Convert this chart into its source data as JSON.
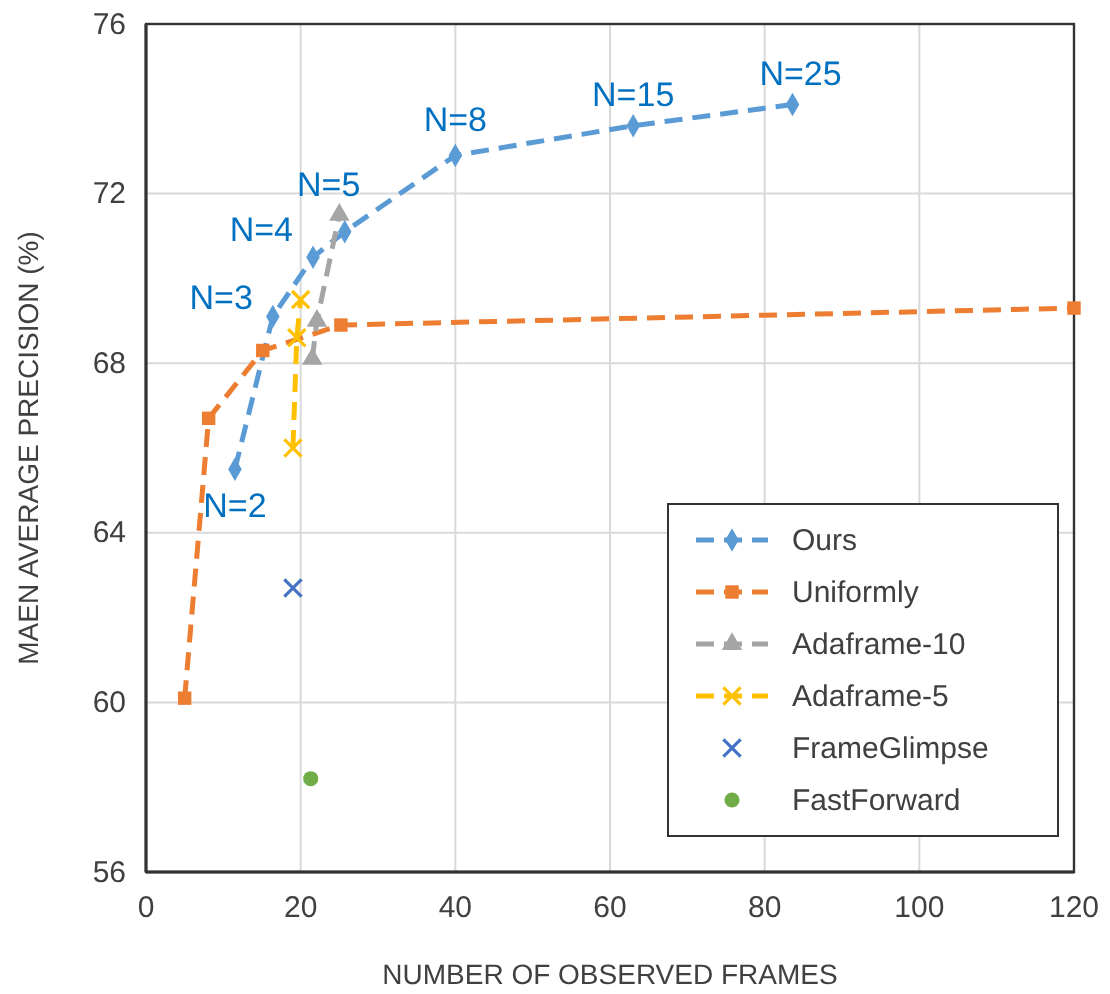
{
  "chart_data": {
    "type": "line",
    "xlabel": "NUMBER OF OBSERVED FRAMES",
    "ylabel": "MAEN AVERAGE PRECISION (%)",
    "xlim": [
      0,
      120
    ],
    "xticks": [
      0,
      20,
      40,
      60,
      80,
      100,
      120
    ],
    "ylim": [
      56,
      76
    ],
    "yticks": [
      56,
      60,
      64,
      68,
      72,
      76
    ],
    "grid": true,
    "legend": "bottom right",
    "series": [
      {
        "name": "Ours",
        "color": "#5b9bd5",
        "marker": "diamond",
        "line_style": "dashed",
        "x": [
          11.5,
          16.4,
          21.6,
          25.7,
          40,
          63,
          83.6
        ],
        "values": [
          65.5,
          69.1,
          70.5,
          71.1,
          72.9,
          73.6,
          74.1
        ]
      },
      {
        "name": "Uniformly",
        "color": "#ed7d31",
        "marker": "square",
        "line_style": "dashed",
        "x": [
          5,
          8.1,
          15.1,
          25.2,
          120
        ],
        "values": [
          60.1,
          66.7,
          68.3,
          68.9,
          69.3
        ]
      },
      {
        "name": "Adaframe-10",
        "color": "#a5a5a5",
        "marker": "triangle",
        "line_style": "dashed",
        "x": [
          21.5,
          22.1,
          25
        ],
        "values": [
          68.1,
          69.0,
          71.5
        ]
      },
      {
        "name": "Adaframe-5",
        "color": "#ffc000",
        "marker": "cross",
        "line_style": "dashed",
        "x": [
          19,
          19.5,
          20
        ],
        "values": [
          66.0,
          68.6,
          69.5
        ]
      },
      {
        "name": "FrameGlimpse",
        "type": "scatter",
        "color": "#4472c4",
        "marker": "cross",
        "x": [
          19
        ],
        "values": [
          62.7
        ]
      },
      {
        "name": "FastForward",
        "type": "scatter",
        "color": "#70ad47",
        "marker": "circle",
        "x": [
          21.3
        ],
        "values": [
          58.2
        ]
      }
    ],
    "annotations": [
      {
        "text": "N=2",
        "x": 11.5,
        "y": 65.5
      },
      {
        "text": "N=3",
        "x": 16.4,
        "y": 69.1
      },
      {
        "text": "N=4",
        "x": 21.6,
        "y": 70.5
      },
      {
        "text": "N=5",
        "x": 25.7,
        "y": 71.1
      },
      {
        "text": "N=8",
        "x": 40,
        "y": 72.9
      },
      {
        "text": "N=15",
        "x": 63,
        "y": 73.6
      },
      {
        "text": "N=25",
        "x": 83.6,
        "y": 74.1
      }
    ]
  }
}
